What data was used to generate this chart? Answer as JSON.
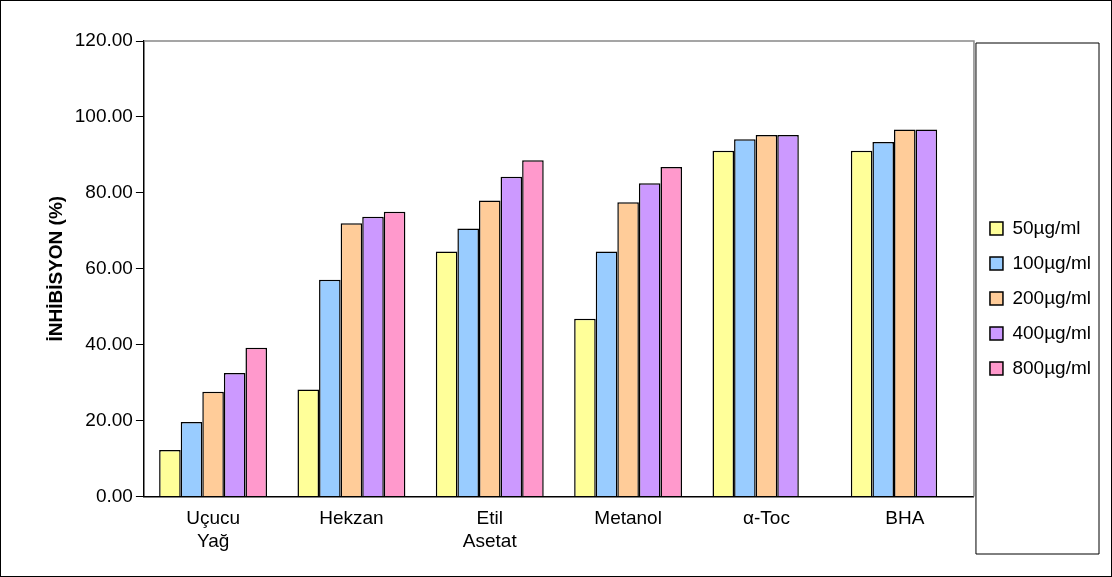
{
  "chart_data": {
    "type": "bar",
    "ylabel": "İNHİBİSYON (%)",
    "categories": [
      "Uçucu Yağ",
      "Hekzan",
      "Etil Asetat",
      "Metanol",
      "α-Toc",
      "BHA"
    ],
    "series": [
      {
        "name": "50µg/ml",
        "color": "#ffff99",
        "values": [
          12.2,
          28.2,
          64.5,
          46.8,
          91.1,
          91.1
        ]
      },
      {
        "name": "100µg/ml",
        "color": "#99ccff",
        "values": [
          19.6,
          57.1,
          70.6,
          64.5,
          94.1,
          93.4
        ]
      },
      {
        "name": "200µg/ml",
        "color": "#ffcc99",
        "values": [
          27.6,
          72.0,
          78.0,
          77.5,
          95.2,
          96.7
        ]
      },
      {
        "name": "400µg/ml",
        "color": "#cc99ff",
        "values": [
          32.5,
          73.7,
          84.2,
          82.5,
          95.2,
          96.7
        ]
      },
      {
        "name": "800µg/ml",
        "color": "#ff99cc",
        "values": [
          39.2,
          75.0,
          88.6,
          86.8,
          null,
          null
        ]
      }
    ],
    "ylim": [
      0,
      120
    ],
    "yticks": [
      {
        "value": 0,
        "label": "0.00"
      },
      {
        "value": 20,
        "label": "20.00"
      },
      {
        "value": 40,
        "label": "40.00"
      },
      {
        "value": 60,
        "label": "60.00"
      },
      {
        "value": 80,
        "label": "80.00"
      },
      {
        "value": 100,
        "label": "100.00"
      },
      {
        "value": 120,
        "label": "120.00"
      }
    ],
    "grid": false,
    "legend": "right"
  }
}
